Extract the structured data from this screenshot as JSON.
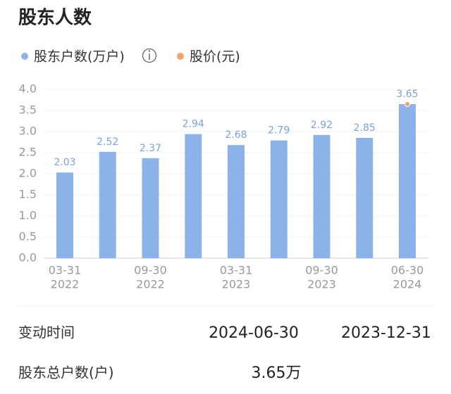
{
  "chart_data": {
    "type": "bar",
    "title": "股东人数",
    "categories": [
      "03-31",
      null,
      "09-30",
      null,
      "03-31",
      null,
      "09-30",
      null,
      "06-30"
    ],
    "category_years": [
      "2022",
      null,
      "2022",
      null,
      "2023",
      null,
      "2023",
      null,
      "2024"
    ],
    "series": [
      {
        "name": "股东户数(万户)",
        "color": "#8bb3ea",
        "values": [
          2.03,
          2.52,
          2.37,
          2.94,
          2.68,
          2.79,
          2.92,
          2.85,
          3.65
        ]
      },
      {
        "name": "股价(元)",
        "color": "#f0a46c",
        "values": [
          null,
          null,
          null,
          null,
          null,
          null,
          null,
          null,
          3.65
        ]
      }
    ],
    "ylim": [
      0,
      4
    ],
    "yticks": [
      {
        "value": 0,
        "label": "0.0"
      },
      {
        "value": 0.5,
        "label": "0.5"
      },
      {
        "value": 1,
        "label": "1.0"
      },
      {
        "value": 1.5,
        "label": "1.5"
      },
      {
        "value": 2,
        "label": "2.0"
      },
      {
        "value": 2.5,
        "label": "2.5"
      },
      {
        "value": 3,
        "label": "3.0"
      },
      {
        "value": 3.5,
        "label": "3.5"
      },
      {
        "value": 4,
        "label": "4.0"
      }
    ],
    "grid": true
  },
  "table": {
    "rows": [
      [
        "变动时间",
        "2024-06-30",
        "2023-12-31"
      ],
      [
        "股东总户数(户)",
        "3.65万"
      ]
    ]
  }
}
